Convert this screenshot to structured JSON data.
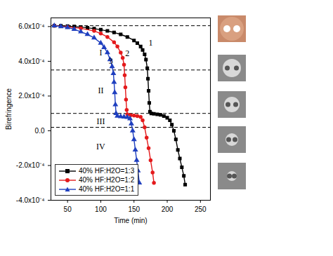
{
  "chart_data": {
    "type": "line",
    "x_label": "Time (min)",
    "y_label": "Birefringence",
    "xlim": [
      25,
      265
    ],
    "xticks": [
      50,
      100,
      150,
      200,
      250
    ],
    "ylim": [
      -0.0004,
      0.00065
    ],
    "yticks": [
      {
        "value": -0.0004,
        "label": "-4.0x10⁻⁴"
      },
      {
        "value": -0.0002,
        "label": "-2.0x10⁻⁴"
      },
      {
        "value": 0,
        "label": "0.0"
      },
      {
        "value": 0.0002,
        "label": "2.0x10⁻⁴"
      },
      {
        "value": 0.0004,
        "label": "4.0x10⁻⁴"
      },
      {
        "value": 0.0006,
        "label": "6.0x10⁻⁴"
      }
    ],
    "legend": "lower left",
    "reference_lines": [
      0.000605,
      0.00035,
      0.0001,
      2e-05
    ],
    "annotations": [
      {
        "text": "I",
        "x": 100,
        "y": 0.00045
      },
      {
        "text": "II",
        "x": 100,
        "y": 0.00023
      },
      {
        "text": "III",
        "x": 100,
        "y": 5.5e-05
      },
      {
        "text": "IV",
        "x": 100,
        "y": -9e-05
      },
      {
        "text": "1",
        "x": 175,
        "y": 0.000505
      },
      {
        "text": "2",
        "x": 140,
        "y": 0.000445
      },
      {
        "text": "3",
        "x": 115,
        "y": 0.0004
      }
    ],
    "series": [
      {
        "name": "40% HF:H2O=1:3",
        "color": "#000000",
        "marker": "square",
        "line_style": "solid",
        "x": [
          30,
          40,
          50,
          60,
          70,
          80,
          90,
          100,
          110,
          120,
          130,
          140,
          150,
          155,
          160,
          163,
          166,
          168,
          170,
          171,
          172,
          173,
          174,
          176,
          180,
          185,
          190,
          195,
          200,
          204,
          207,
          210,
          213,
          216,
          219,
          222,
          225,
          227
        ],
        "values": [
          0.000605,
          0.000604,
          0.000602,
          0.0006,
          0.000597,
          0.000593,
          0.000588,
          0.000582,
          0.000575,
          0.000566,
          0.000555,
          0.00054,
          0.00052,
          0.000505,
          0.000485,
          0.000465,
          0.00044,
          0.00041,
          0.00036,
          0.0003,
          0.00023,
          0.00016,
          0.00011,
          0.0001,
          9.8e-05,
          9.5e-05,
          9.2e-05,
          8.5e-05,
          7.5e-05,
          6e-05,
          3.5e-05,
          0.0,
          -5e-05,
          -0.00011,
          -0.00016,
          -0.00021,
          -0.00026,
          -0.00031
        ]
      },
      {
        "name": "40% HF:H2O=1:2",
        "color": "#e41a1c",
        "marker": "circle",
        "line_style": "solid",
        "x": [
          30,
          50,
          70,
          90,
          100,
          110,
          120,
          125,
          130,
          133,
          135,
          136,
          137,
          138,
          139,
          140,
          145,
          150,
          155,
          160,
          163,
          166,
          169,
          172,
          175,
          178,
          180
        ],
        "values": [
          0.000605,
          0.000598,
          0.00059,
          0.000575,
          0.00056,
          0.00054,
          0.00051,
          0.000485,
          0.00045,
          0.00042,
          0.00038,
          0.00032,
          0.00025,
          0.00018,
          0.00012,
          9.5e-05,
          9e-05,
          8.8e-05,
          8.5e-05,
          8e-05,
          6e-05,
          2e-05,
          -4e-05,
          -0.0001,
          -0.00017,
          -0.00024,
          -0.0003
        ]
      },
      {
        "name": "40% HF:H2O=1:1",
        "color": "#1f3fbf",
        "marker": "triangle",
        "line_style": "solid",
        "x": [
          30,
          40,
          50,
          60,
          70,
          80,
          90,
          100,
          105,
          110,
          114,
          117,
          119,
          120,
          121,
          122,
          123,
          125,
          130,
          135,
          140,
          144,
          146,
          148,
          150,
          152,
          154,
          156,
          158
        ],
        "values": [
          0.000605,
          0.0006,
          0.000595,
          0.000585,
          0.00057,
          0.000555,
          0.000535,
          0.000505,
          0.00048,
          0.00045,
          0.00041,
          0.00037,
          0.00033,
          0.00028,
          0.00022,
          0.00015,
          0.0001,
          8.5e-05,
          8.2e-05,
          8e-05,
          7.8e-05,
          7e-05,
          4e-05,
          0.0,
          -5e-05,
          -0.00011,
          -0.00017,
          -0.00023,
          -0.0003
        ]
      }
    ]
  }
}
